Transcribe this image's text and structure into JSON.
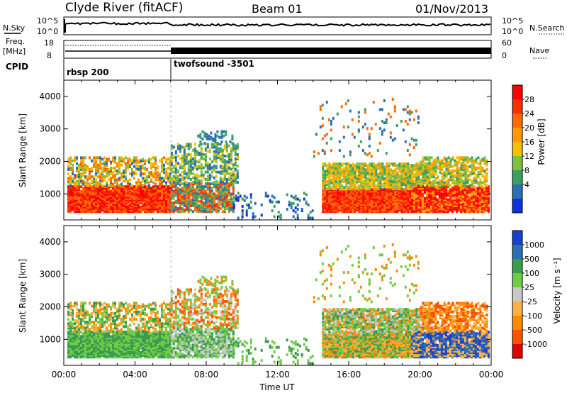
{
  "header": {
    "station": "Clyde River (fitACF)",
    "beam": "Beam 01",
    "date": "01/Nov/2013"
  },
  "mini_panels": {
    "nsky_label": "N.Sky",
    "nsky_ticks": [
      "10^5",
      "10^0"
    ],
    "nsearch_label": "N.Search",
    "nsearch_ticks": [
      "10^5",
      "10^0"
    ],
    "freq_label": "Freq.",
    "freq_unit": "[MHz]",
    "freq_ticks": [
      "18",
      "8"
    ],
    "nave_label": "Nave",
    "nave_ticks": [
      "60",
      "0"
    ],
    "cpid_label": "CPID",
    "cpid_modes": [
      {
        "label": "rbsp 200",
        "start_hour": 0
      },
      {
        "label": "twofsound -3501",
        "start_hour": 6
      }
    ]
  },
  "chart_data": [
    {
      "type": "heatmap",
      "name": "power",
      "ylabel": "Slant Range [km]",
      "yticks": [
        1000,
        2000,
        3000,
        4000
      ],
      "ylim": [
        200,
        4500
      ],
      "xlim": [
        0,
        24
      ],
      "colorbar": {
        "label": "Power [dB]",
        "ticks": [
          "28",
          "24",
          "20",
          "16",
          "12",
          "8",
          "4"
        ],
        "colors": [
          "#ff0000",
          "#ff2a00",
          "#ff6a00",
          "#ff9a00",
          "#f2c200",
          "#7fc040",
          "#3aa060",
          "#2a6fb0",
          "#1030e0"
        ]
      }
    },
    {
      "type": "heatmap",
      "name": "velocity",
      "ylabel": "Slant Range [km]",
      "yticks": [
        1000,
        2000,
        3000,
        4000
      ],
      "ylim": [
        200,
        4500
      ],
      "xlim": [
        0,
        24
      ],
      "xlabel": "Time UT",
      "xticks": [
        "00:00",
        "04:00",
        "08:00",
        "12:00",
        "16:00",
        "20:00",
        "00:00"
      ],
      "colorbar": {
        "label": "Velocity [m s⁻¹]",
        "ticks": [
          "1000",
          "500",
          "100",
          "25",
          "-25",
          "-100",
          "-500",
          "-1000"
        ],
        "colors": [
          "#1a3fd0",
          "#2a6fb0",
          "#3a9a50",
          "#6fcc44",
          "#c8c8c8",
          "#ffb040",
          "#ff8a00",
          "#ff5000",
          "#e00000"
        ]
      }
    }
  ]
}
